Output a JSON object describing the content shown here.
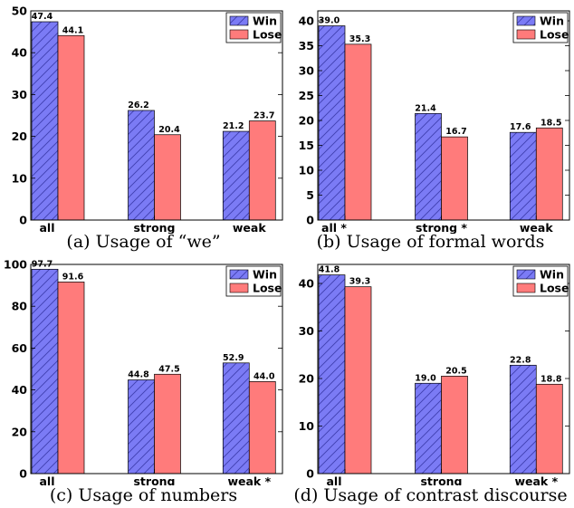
{
  "colors": {
    "win": "#7B7BF5",
    "lose": "#FF7B7B",
    "hatch": "#3F3FB0",
    "axis": "#000000"
  },
  "legend": {
    "win": "Win",
    "lose": "Lose"
  },
  "chart_data": [
    {
      "type": "bar",
      "caption": "(a) Usage of “we”",
      "categories": [
        "all",
        "strong",
        "weak"
      ],
      "series": [
        {
          "name": "Win",
          "values": [
            47.4,
            26.2,
            21.2
          ]
        },
        {
          "name": "Lose",
          "values": [
            44.1,
            20.4,
            23.7
          ]
        }
      ],
      "data_labels": [
        [
          "47.4",
          "26.2",
          "21.2"
        ],
        [
          "44.1",
          "20.4",
          "23.7"
        ]
      ],
      "ylim": [
        0,
        50
      ],
      "yticks": [
        0,
        10,
        20,
        30,
        40,
        50
      ],
      "legend_position": "top-right",
      "grid": false
    },
    {
      "type": "bar",
      "caption": "(b) Usage of formal words",
      "categories": [
        "all *",
        "strong *",
        "weak"
      ],
      "series": [
        {
          "name": "Win",
          "values": [
            39.0,
            21.4,
            17.6
          ]
        },
        {
          "name": "Lose",
          "values": [
            35.3,
            16.7,
            18.5
          ]
        }
      ],
      "data_labels": [
        [
          "39.0",
          "21.4",
          "17.6"
        ],
        [
          "35.3",
          "16.7",
          "18.5"
        ]
      ],
      "ylim": [
        0,
        42
      ],
      "yticks": [
        0,
        5,
        10,
        15,
        20,
        25,
        30,
        35,
        40
      ],
      "legend_position": "top-right",
      "grid": false
    },
    {
      "type": "bar",
      "caption": "(c) Usage of numbers",
      "categories": [
        "all",
        "strong",
        "weak *"
      ],
      "series": [
        {
          "name": "Win",
          "values": [
            97.7,
            44.8,
            52.9
          ]
        },
        {
          "name": "Lose",
          "values": [
            91.6,
            47.5,
            44.0
          ]
        }
      ],
      "data_labels": [
        [
          "97.7",
          "44.8",
          "52.9"
        ],
        [
          "91.6",
          "47.5",
          "44.0"
        ]
      ],
      "ylim": [
        0,
        100
      ],
      "yticks": [
        0,
        20,
        40,
        60,
        80,
        100
      ],
      "legend_position": "top-right",
      "grid": false
    },
    {
      "type": "bar",
      "caption": "(d) Usage of contrast discourse",
      "categories": [
        "all",
        "strong",
        "weak *"
      ],
      "series": [
        {
          "name": "Win",
          "values": [
            41.8,
            19.0,
            22.8
          ]
        },
        {
          "name": "Lose",
          "values": [
            39.3,
            20.5,
            18.8
          ]
        }
      ],
      "data_labels": [
        [
          "41.8",
          "19.0",
          "22.8"
        ],
        [
          "39.3",
          "20.5",
          "18.8"
        ]
      ],
      "ylim": [
        0,
        44
      ],
      "yticks": [
        0,
        10,
        20,
        30,
        40
      ],
      "legend_position": "top-right",
      "grid": false
    }
  ]
}
